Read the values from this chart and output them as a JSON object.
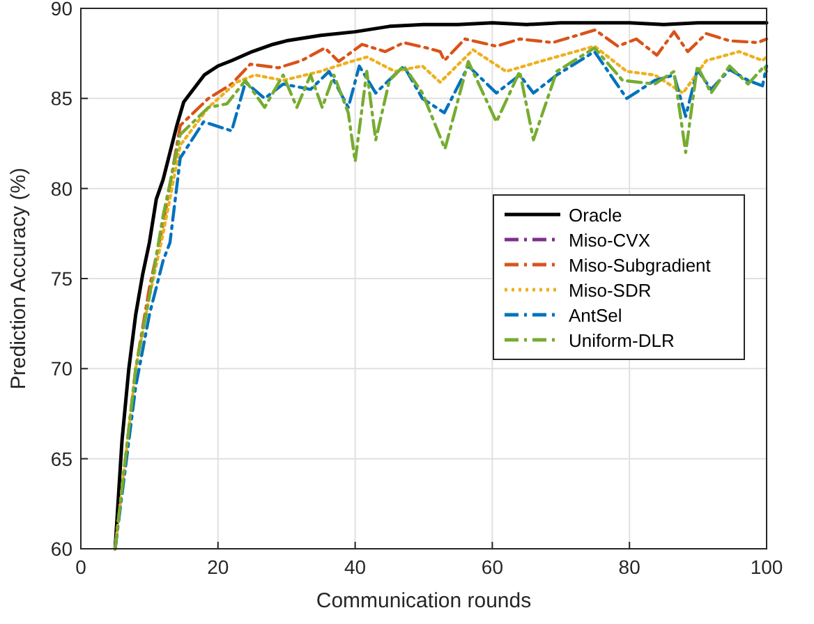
{
  "chart_data": {
    "type": "line",
    "xlabel": "Communication rounds",
    "ylabel": "Prediction Accuracy (%)",
    "xlim": [
      0,
      100
    ],
    "ylim": [
      60,
      90
    ],
    "xticks": [
      0,
      20,
      40,
      60,
      80,
      100
    ],
    "yticks": [
      60,
      65,
      70,
      75,
      80,
      85,
      90
    ],
    "grid": true,
    "legend": "right",
    "series": [
      {
        "name": "Oracle",
        "color": "#000000",
        "line_style": "solid",
        "x": [
          5,
          6,
          7,
          8,
          9,
          10,
          11,
          12,
          13,
          14,
          15,
          16,
          18,
          20,
          22,
          25,
          28,
          30,
          35,
          40,
          45,
          50,
          55,
          60,
          65,
          70,
          75,
          80,
          85,
          90,
          95,
          100
        ],
        "values": [
          60,
          66,
          70,
          73,
          75.2,
          77,
          79.4,
          80.5,
          82,
          83.5,
          84.8,
          85.3,
          86.3,
          86.8,
          87.1,
          87.6,
          88,
          88.2,
          88.5,
          88.7,
          89,
          89.1,
          89.1,
          89.2,
          89.1,
          89.2,
          89.2,
          89.2,
          89.1,
          89.2,
          89.2,
          89.2
        ]
      },
      {
        "name": "Miso-CVX",
        "color": "#7e2f8e",
        "line_style": "dashed"
      },
      {
        "name": "Miso-Subgradient",
        "color": "#d95319",
        "line_style": "dashed",
        "x": [
          5,
          8,
          10,
          12,
          14.5,
          18.6,
          22,
          24.7,
          28.8,
          32.2,
          35.6,
          37.6,
          41,
          44.4,
          47.1,
          50.5,
          52.4,
          53,
          56,
          60.6,
          64,
          68.8,
          75,
          78.3,
          81,
          84,
          86.5,
          88.5,
          91.2,
          94.6,
          98.7,
          100
        ],
        "values": [
          60,
          70,
          74.5,
          78,
          83.5,
          85,
          85.8,
          86.9,
          86.7,
          87.1,
          87.8,
          87.05,
          88,
          87.6,
          88.1,
          87.8,
          87.6,
          87.1,
          88.3,
          87.9,
          88.3,
          88.1,
          88.8,
          87.9,
          88.3,
          87.4,
          88.7,
          87.6,
          88.6,
          88.2,
          88.1,
          88.3
        ]
      },
      {
        "name": "Miso-SDR",
        "color": "#edb120",
        "line_style": "dotted",
        "x": [
          5,
          8,
          10,
          12,
          14.5,
          18.6,
          22.7,
          25.4,
          29.5,
          34.9,
          39,
          41.7,
          45.8,
          49.8,
          52.4,
          57.2,
          62,
          67.4,
          74.9,
          79.6,
          83.7,
          87.8,
          91.2,
          96,
          99.4,
          100
        ],
        "values": [
          60,
          70,
          74,
          77.5,
          82.4,
          84.5,
          85.9,
          86.3,
          86,
          86.5,
          87,
          87.3,
          86.5,
          86.8,
          85.9,
          87.7,
          86.5,
          87.1,
          87.9,
          86.5,
          86.3,
          85.3,
          87.1,
          87.6,
          87.1,
          87.3
        ]
      },
      {
        "name": "AntSel",
        "color": "#0072bd",
        "line_style": "dashed",
        "x": [
          5,
          8,
          10,
          12,
          13,
          14.5,
          17.9,
          22,
          24,
          26.8,
          29.5,
          33.5,
          36.2,
          39,
          40.6,
          43,
          47.1,
          49.8,
          53,
          56.5,
          60.6,
          64,
          66,
          69.4,
          74.9,
          79.6,
          83.7,
          86.5,
          88.2,
          89.9,
          91.9,
          94.6,
          97.3,
          99.4,
          100
        ],
        "values": [
          60,
          69,
          73,
          76,
          77,
          81.7,
          83.7,
          83.2,
          85.9,
          85,
          85.8,
          85.5,
          86.5,
          84.5,
          86.8,
          85.3,
          86.8,
          85,
          84.2,
          86.8,
          85.3,
          86.3,
          85.3,
          86.3,
          87.6,
          85,
          86,
          86.3,
          84,
          86.6,
          85.5,
          86.6,
          86,
          85.7,
          86.8
        ]
      },
      {
        "name": "Uniform-DLR",
        "color": "#77ac30",
        "line_style": "dashed",
        "x": [
          5,
          8,
          10,
          12,
          14.5,
          18.6,
          21.3,
          24,
          26.8,
          29.5,
          31.5,
          33.5,
          35.2,
          36.9,
          39,
          40,
          41.7,
          43,
          45,
          47.1,
          49.8,
          53.1,
          56.5,
          60.6,
          64,
          66,
          69.4,
          74.9,
          79,
          83.7,
          86.5,
          88.2,
          89.9,
          91.9,
          94.6,
          97.3,
          99.7,
          100
        ],
        "values": [
          60,
          70,
          74,
          78.5,
          83,
          84.5,
          84.7,
          86,
          84.5,
          86.3,
          84.5,
          86.3,
          84.5,
          86.3,
          84.2,
          81.5,
          86.5,
          82.7,
          86,
          86.8,
          85.3,
          82.2,
          87.05,
          83.7,
          86.5,
          82.7,
          86.5,
          87.8,
          86,
          85.8,
          86.5,
          82,
          86.8,
          85.3,
          86.8,
          85.8,
          86.8,
          86.5
        ]
      }
    ]
  }
}
